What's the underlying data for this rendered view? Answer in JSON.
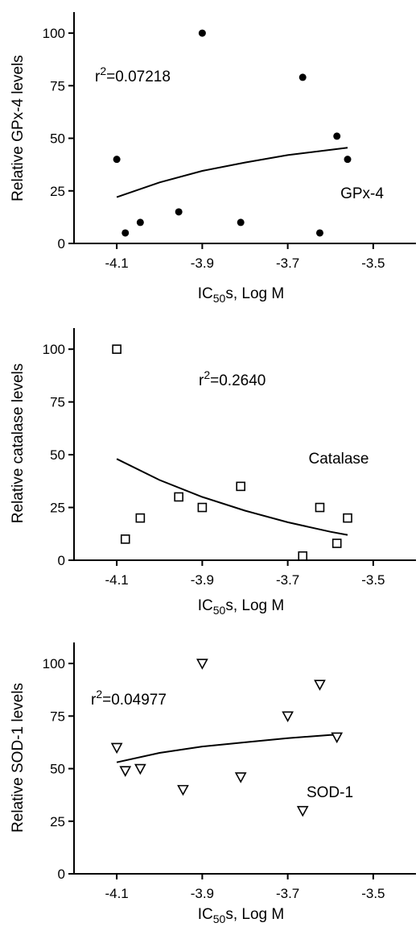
{
  "chart_data": [
    {
      "type": "scatter",
      "ylabel": "Relative GPx-4 levels",
      "xlabel": {
        "prefix": "IC",
        "subscript": "50",
        "suffix": "s, Log M"
      },
      "xlim": [
        -4.2,
        -3.4
      ],
      "ylim": [
        0,
        110
      ],
      "xticks": [
        -4.1,
        -3.9,
        -3.7,
        -3.5
      ],
      "xtick_labels": [
        "-4.1",
        "-3.9",
        "-3.7",
        "-3.5"
      ],
      "yticks": [
        0,
        25,
        50,
        75,
        100
      ],
      "ytick_labels": [
        "0",
        "25",
        "50",
        "75",
        "100"
      ],
      "marker": "filled-circle",
      "r2": {
        "prefix": "r",
        "sup": "2",
        "value": "=0.07218"
      },
      "series_label": "GPx-4",
      "points": [
        {
          "x": -4.1,
          "y": 40
        },
        {
          "x": -4.08,
          "y": 5
        },
        {
          "x": -4.045,
          "y": 10
        },
        {
          "x": -3.955,
          "y": 15
        },
        {
          "x": -3.9,
          "y": 100
        },
        {
          "x": -3.81,
          "y": 10
        },
        {
          "x": -3.665,
          "y": 79
        },
        {
          "x": -3.625,
          "y": 5
        },
        {
          "x": -3.585,
          "y": 51
        },
        {
          "x": -3.56,
          "y": 40
        }
      ],
      "fit": [
        {
          "x": -4.1,
          "y": 22
        },
        {
          "x": -4.0,
          "y": 29
        },
        {
          "x": -3.9,
          "y": 34.5
        },
        {
          "x": -3.8,
          "y": 38.5
        },
        {
          "x": -3.7,
          "y": 42
        },
        {
          "x": -3.6,
          "y": 44.5
        },
        {
          "x": -3.56,
          "y": 45.5
        }
      ]
    },
    {
      "type": "scatter",
      "ylabel": "Relative catalase levels",
      "xlabel": {
        "prefix": "IC",
        "subscript": "50",
        "suffix": "s, Log M"
      },
      "xlim": [
        -4.2,
        -3.4
      ],
      "ylim": [
        0,
        110
      ],
      "xticks": [
        -4.1,
        -3.9,
        -3.7,
        -3.5
      ],
      "xtick_labels": [
        "-4.1",
        "-3.9",
        "-3.7",
        "-3.5"
      ],
      "yticks": [
        0,
        25,
        50,
        75,
        100
      ],
      "ytick_labels": [
        "0",
        "25",
        "50",
        "75",
        "100"
      ],
      "marker": "open-square",
      "r2": {
        "prefix": "r",
        "sup": "2",
        "value": "=0.2640"
      },
      "series_label": "Catalase",
      "points": [
        {
          "x": -4.1,
          "y": 100
        },
        {
          "x": -4.08,
          "y": 10
        },
        {
          "x": -4.045,
          "y": 20
        },
        {
          "x": -3.955,
          "y": 30
        },
        {
          "x": -3.9,
          "y": 25
        },
        {
          "x": -3.81,
          "y": 35
        },
        {
          "x": -3.665,
          "y": 2
        },
        {
          "x": -3.625,
          "y": 25
        },
        {
          "x": -3.585,
          "y": 8
        },
        {
          "x": -3.56,
          "y": 20
        }
      ],
      "fit": [
        {
          "x": -4.1,
          "y": 48
        },
        {
          "x": -4.0,
          "y": 38
        },
        {
          "x": -3.9,
          "y": 30
        },
        {
          "x": -3.8,
          "y": 23.5
        },
        {
          "x": -3.7,
          "y": 18
        },
        {
          "x": -3.6,
          "y": 13.5
        },
        {
          "x": -3.56,
          "y": 12
        }
      ]
    },
    {
      "type": "scatter",
      "ylabel": "Relative SOD-1 levels",
      "xlabel": {
        "prefix": "IC",
        "subscript": "50",
        "suffix": "s, Log M"
      },
      "xlim": [
        -4.2,
        -3.4
      ],
      "ylim": [
        0,
        110
      ],
      "xticks": [
        -4.1,
        -3.9,
        -3.7,
        -3.5
      ],
      "xtick_labels": [
        "-4.1",
        "-3.9",
        "-3.7",
        "-3.5"
      ],
      "yticks": [
        0,
        25,
        50,
        75,
        100
      ],
      "ytick_labels": [
        "0",
        "25",
        "50",
        "75",
        "100"
      ],
      "marker": "open-triangle-down",
      "r2": {
        "prefix": "r",
        "sup": "2",
        "value": "=0.04977"
      },
      "series_label": "SOD-1",
      "points": [
        {
          "x": -4.1,
          "y": 60
        },
        {
          "x": -4.08,
          "y": 49
        },
        {
          "x": -4.045,
          "y": 50
        },
        {
          "x": -3.945,
          "y": 40
        },
        {
          "x": -3.9,
          "y": 100
        },
        {
          "x": -3.81,
          "y": 46
        },
        {
          "x": -3.7,
          "y": 75
        },
        {
          "x": -3.665,
          "y": 30
        },
        {
          "x": -3.625,
          "y": 90
        },
        {
          "x": -3.585,
          "y": 65
        }
      ],
      "fit": [
        {
          "x": -4.1,
          "y": 53
        },
        {
          "x": -4.0,
          "y": 57.5
        },
        {
          "x": -3.9,
          "y": 60.5
        },
        {
          "x": -3.8,
          "y": 62.5
        },
        {
          "x": -3.7,
          "y": 64.5
        },
        {
          "x": -3.6,
          "y": 66
        },
        {
          "x": -3.585,
          "y": 66
        }
      ]
    }
  ]
}
